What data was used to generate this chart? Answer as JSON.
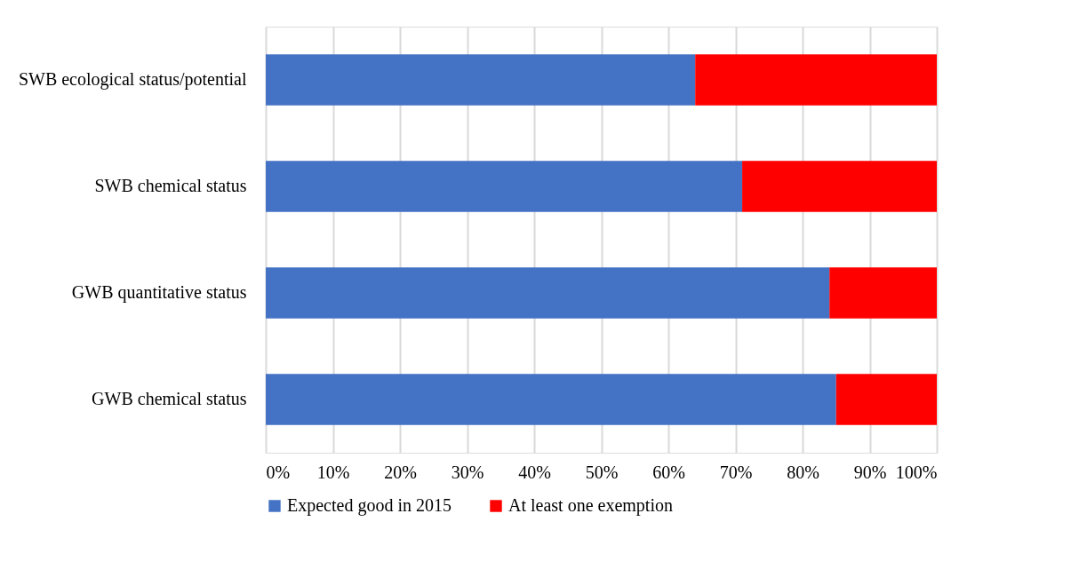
{
  "chart_data": {
    "type": "bar",
    "orientation": "horizontal",
    "stacked": true,
    "categories": [
      "SWB ecological status/potential",
      "SWB chemical status",
      "GWB quantitative status",
      "GWB chemical status"
    ],
    "series": [
      {
        "name": "Expected good in 2015",
        "color": "#4472c4",
        "values": [
          64,
          71,
          84,
          85
        ]
      },
      {
        "name": "At least one exemption",
        "color": "#ff0000",
        "values": [
          36,
          29,
          16,
          15
        ]
      }
    ],
    "xlim": [
      0,
      100
    ],
    "xticks": [
      {
        "value": 0,
        "label": "0%"
      },
      {
        "value": 10,
        "label": "10%"
      },
      {
        "value": 20,
        "label": "20%"
      },
      {
        "value": 30,
        "label": "30%"
      },
      {
        "value": 40,
        "label": "40%"
      },
      {
        "value": 50,
        "label": "50%"
      },
      {
        "value": 60,
        "label": "60%"
      },
      {
        "value": 70,
        "label": "70%"
      },
      {
        "value": 80,
        "label": "80%"
      },
      {
        "value": 90,
        "label": "90%"
      },
      {
        "value": 100,
        "label": "100%"
      }
    ],
    "grid": "x",
    "legend": "bottom"
  }
}
